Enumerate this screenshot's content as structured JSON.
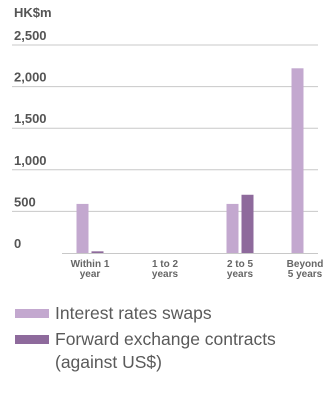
{
  "chart_data": {
    "type": "bar",
    "unit_label": "HK$m",
    "categories": [
      [
        "Within 1",
        "year"
      ],
      [
        "1 to 2",
        "years"
      ],
      [
        "2 to 5",
        "years"
      ],
      [
        "Beyond",
        "5 years"
      ]
    ],
    "series": [
      {
        "name": "Interest rates swaps",
        "color": "#c3a8cf",
        "values": [
          590,
          0,
          590,
          2220
        ]
      },
      {
        "name": "Forward exchange contracts (against US$)",
        "color": "#8e6a9c",
        "values": [
          20,
          0,
          700,
          0
        ]
      }
    ],
    "yticks": [
      0,
      500,
      1000,
      1500,
      2000,
      2500
    ],
    "ytick_labels": [
      "0",
      "500",
      "1,000",
      "1,500",
      "2,000",
      "2,500"
    ],
    "ylim": [
      0,
      2500
    ],
    "grid": true,
    "legend_position": "bottom"
  },
  "legend": {
    "items": [
      {
        "label": "Interest rates swaps",
        "color": "#c3a8cf"
      },
      {
        "label": "Forward exchange contracts (against US$)",
        "color": "#8e6a9c"
      }
    ]
  }
}
